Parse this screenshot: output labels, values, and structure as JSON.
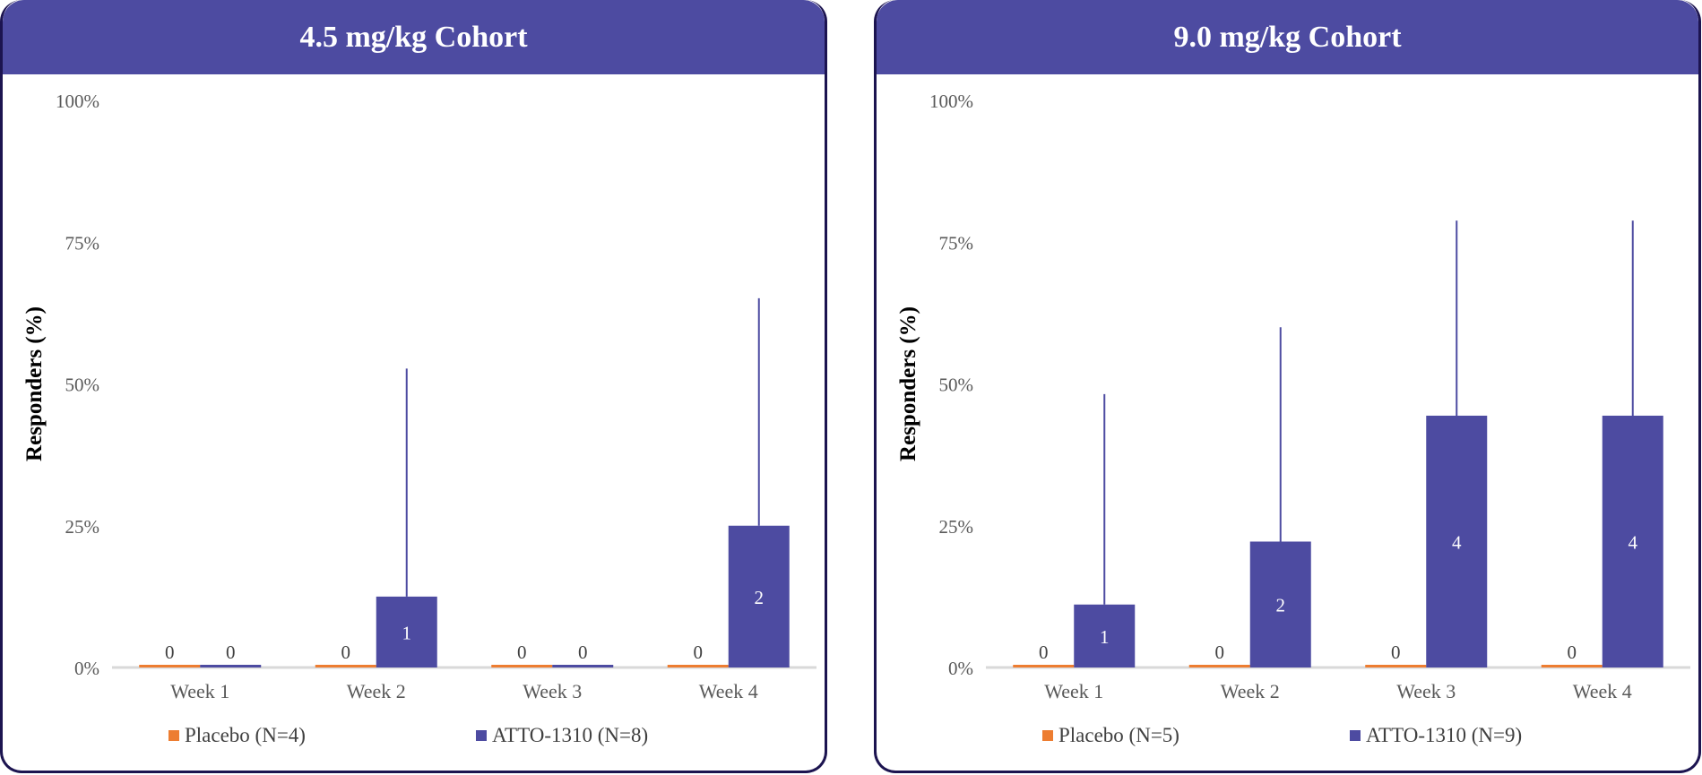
{
  "colors": {
    "placebo": "#ed7d31",
    "treatment": "#4d4ba1",
    "header": "#4d4ba1",
    "border": "#1c1450"
  },
  "chart_data": [
    {
      "type": "bar",
      "title": "4.5 mg/kg Cohort",
      "ylabel": "Responders (%)",
      "xlabel": "",
      "ylim": [
        0,
        100
      ],
      "yticks": [
        "0%",
        "25%",
        "50%",
        "75%",
        "100%"
      ],
      "categories": [
        "Week 1",
        "Week 2",
        "Week 3",
        "Week 4"
      ],
      "series": [
        {
          "name": "Placebo (N=4)",
          "values": [
            0,
            0,
            0,
            0
          ],
          "labels": [
            "0",
            "0",
            "0",
            "0"
          ],
          "error_upper": [
            0,
            0,
            0,
            0
          ]
        },
        {
          "name": "ATTO-1310 (N=8)",
          "values": [
            0,
            12.5,
            0,
            25
          ],
          "labels": [
            "0",
            "1",
            "0",
            "2"
          ],
          "error_upper": [
            0,
            52.7,
            0,
            65.1
          ]
        }
      ],
      "legend": "bottom",
      "grid": false
    },
    {
      "type": "bar",
      "title": "9.0 mg/kg Cohort",
      "ylabel": "Responders (%)",
      "xlabel": "",
      "ylim": [
        0,
        100
      ],
      "yticks": [
        "0%",
        "25%",
        "50%",
        "75%",
        "100%"
      ],
      "categories": [
        "Week 1",
        "Week 2",
        "Week 3",
        "Week 4"
      ],
      "series": [
        {
          "name": "Placebo (N=5)",
          "values": [
            0,
            0,
            0,
            0
          ],
          "labels": [
            "0",
            "0",
            "0",
            "0"
          ],
          "error_upper": [
            0,
            0,
            0,
            0
          ]
        },
        {
          "name": "ATTO-1310 (N=9)",
          "values": [
            11.1,
            22.2,
            44.4,
            44.4
          ],
          "labels": [
            "1",
            "2",
            "4",
            "4"
          ],
          "error_upper": [
            48.2,
            60,
            78.8,
            78.8
          ]
        }
      ],
      "legend": "bottom",
      "grid": false
    }
  ]
}
